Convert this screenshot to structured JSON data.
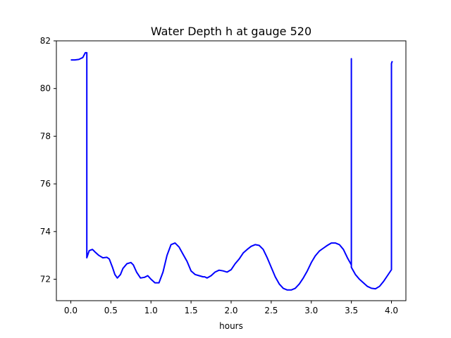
{
  "chart_data": {
    "type": "line",
    "title": "Water Depth h at gauge 520",
    "xlabel": "hours",
    "ylabel": "",
    "xlim": [
      -0.18,
      4.18
    ],
    "ylim": [
      71.1,
      82.0
    ],
    "xticks": [
      0.0,
      0.5,
      1.0,
      1.5,
      2.0,
      2.5,
      3.0,
      3.5,
      4.0
    ],
    "xtick_labels": [
      "0.0",
      "0.5",
      "1.0",
      "1.5",
      "2.0",
      "2.5",
      "3.0",
      "3.5",
      "4.0"
    ],
    "yticks": [
      72,
      74,
      76,
      78,
      80,
      82
    ],
    "ytick_labels": [
      "72",
      "74",
      "76",
      "78",
      "80",
      "82"
    ],
    "grid": false,
    "series": [
      {
        "color": "#0000ff",
        "x": [
          0.0,
          0.05,
          0.1,
          0.15,
          0.18,
          0.2,
          0.2,
          0.23,
          0.27,
          0.3,
          0.35,
          0.4,
          0.45,
          0.48,
          0.52,
          0.55,
          0.58,
          0.62,
          0.65,
          0.7,
          0.75,
          0.78,
          0.82,
          0.87,
          0.92,
          0.96,
          1.0,
          1.05,
          1.1,
          1.15,
          1.2,
          1.25,
          1.3,
          1.35,
          1.4,
          1.45,
          1.5,
          1.55,
          1.6,
          1.65,
          1.67,
          1.7,
          1.75,
          1.8,
          1.85,
          1.9,
          1.95,
          2.0,
          2.05,
          2.1,
          2.15,
          2.2,
          2.25,
          2.3,
          2.35,
          2.4,
          2.45,
          2.5,
          2.55,
          2.6,
          2.65,
          2.7,
          2.75,
          2.8,
          2.85,
          2.9,
          2.95,
          3.0,
          3.05,
          3.1,
          3.15,
          3.2,
          3.25,
          3.3,
          3.35,
          3.4,
          3.45,
          3.5,
          3.5,
          3.5,
          3.55,
          3.6,
          3.65,
          3.7,
          3.75,
          3.8,
          3.85,
          3.9,
          3.95,
          4.0,
          4.0,
          4.01
        ],
        "y": [
          81.2,
          81.2,
          81.22,
          81.3,
          81.5,
          81.5,
          72.9,
          73.2,
          73.25,
          73.15,
          73.0,
          72.9,
          72.92,
          72.85,
          72.5,
          72.2,
          72.05,
          72.2,
          72.45,
          72.65,
          72.7,
          72.6,
          72.3,
          72.05,
          72.08,
          72.15,
          72.0,
          71.85,
          71.85,
          72.3,
          73.0,
          73.45,
          73.52,
          73.35,
          73.05,
          72.75,
          72.35,
          72.2,
          72.15,
          72.1,
          72.1,
          72.05,
          72.15,
          72.3,
          72.38,
          72.35,
          72.3,
          72.4,
          72.65,
          72.85,
          73.1,
          73.25,
          73.38,
          73.45,
          73.42,
          73.25,
          72.9,
          72.5,
          72.1,
          71.8,
          71.62,
          71.55,
          71.55,
          71.62,
          71.8,
          72.05,
          72.35,
          72.7,
          72.98,
          73.18,
          73.3,
          73.42,
          73.52,
          73.52,
          73.45,
          73.25,
          72.9,
          72.6,
          81.25,
          72.5,
          72.2,
          72.0,
          71.85,
          71.7,
          71.62,
          71.6,
          71.7,
          71.9,
          72.15,
          72.4,
          81.05,
          81.15
        ]
      }
    ]
  }
}
